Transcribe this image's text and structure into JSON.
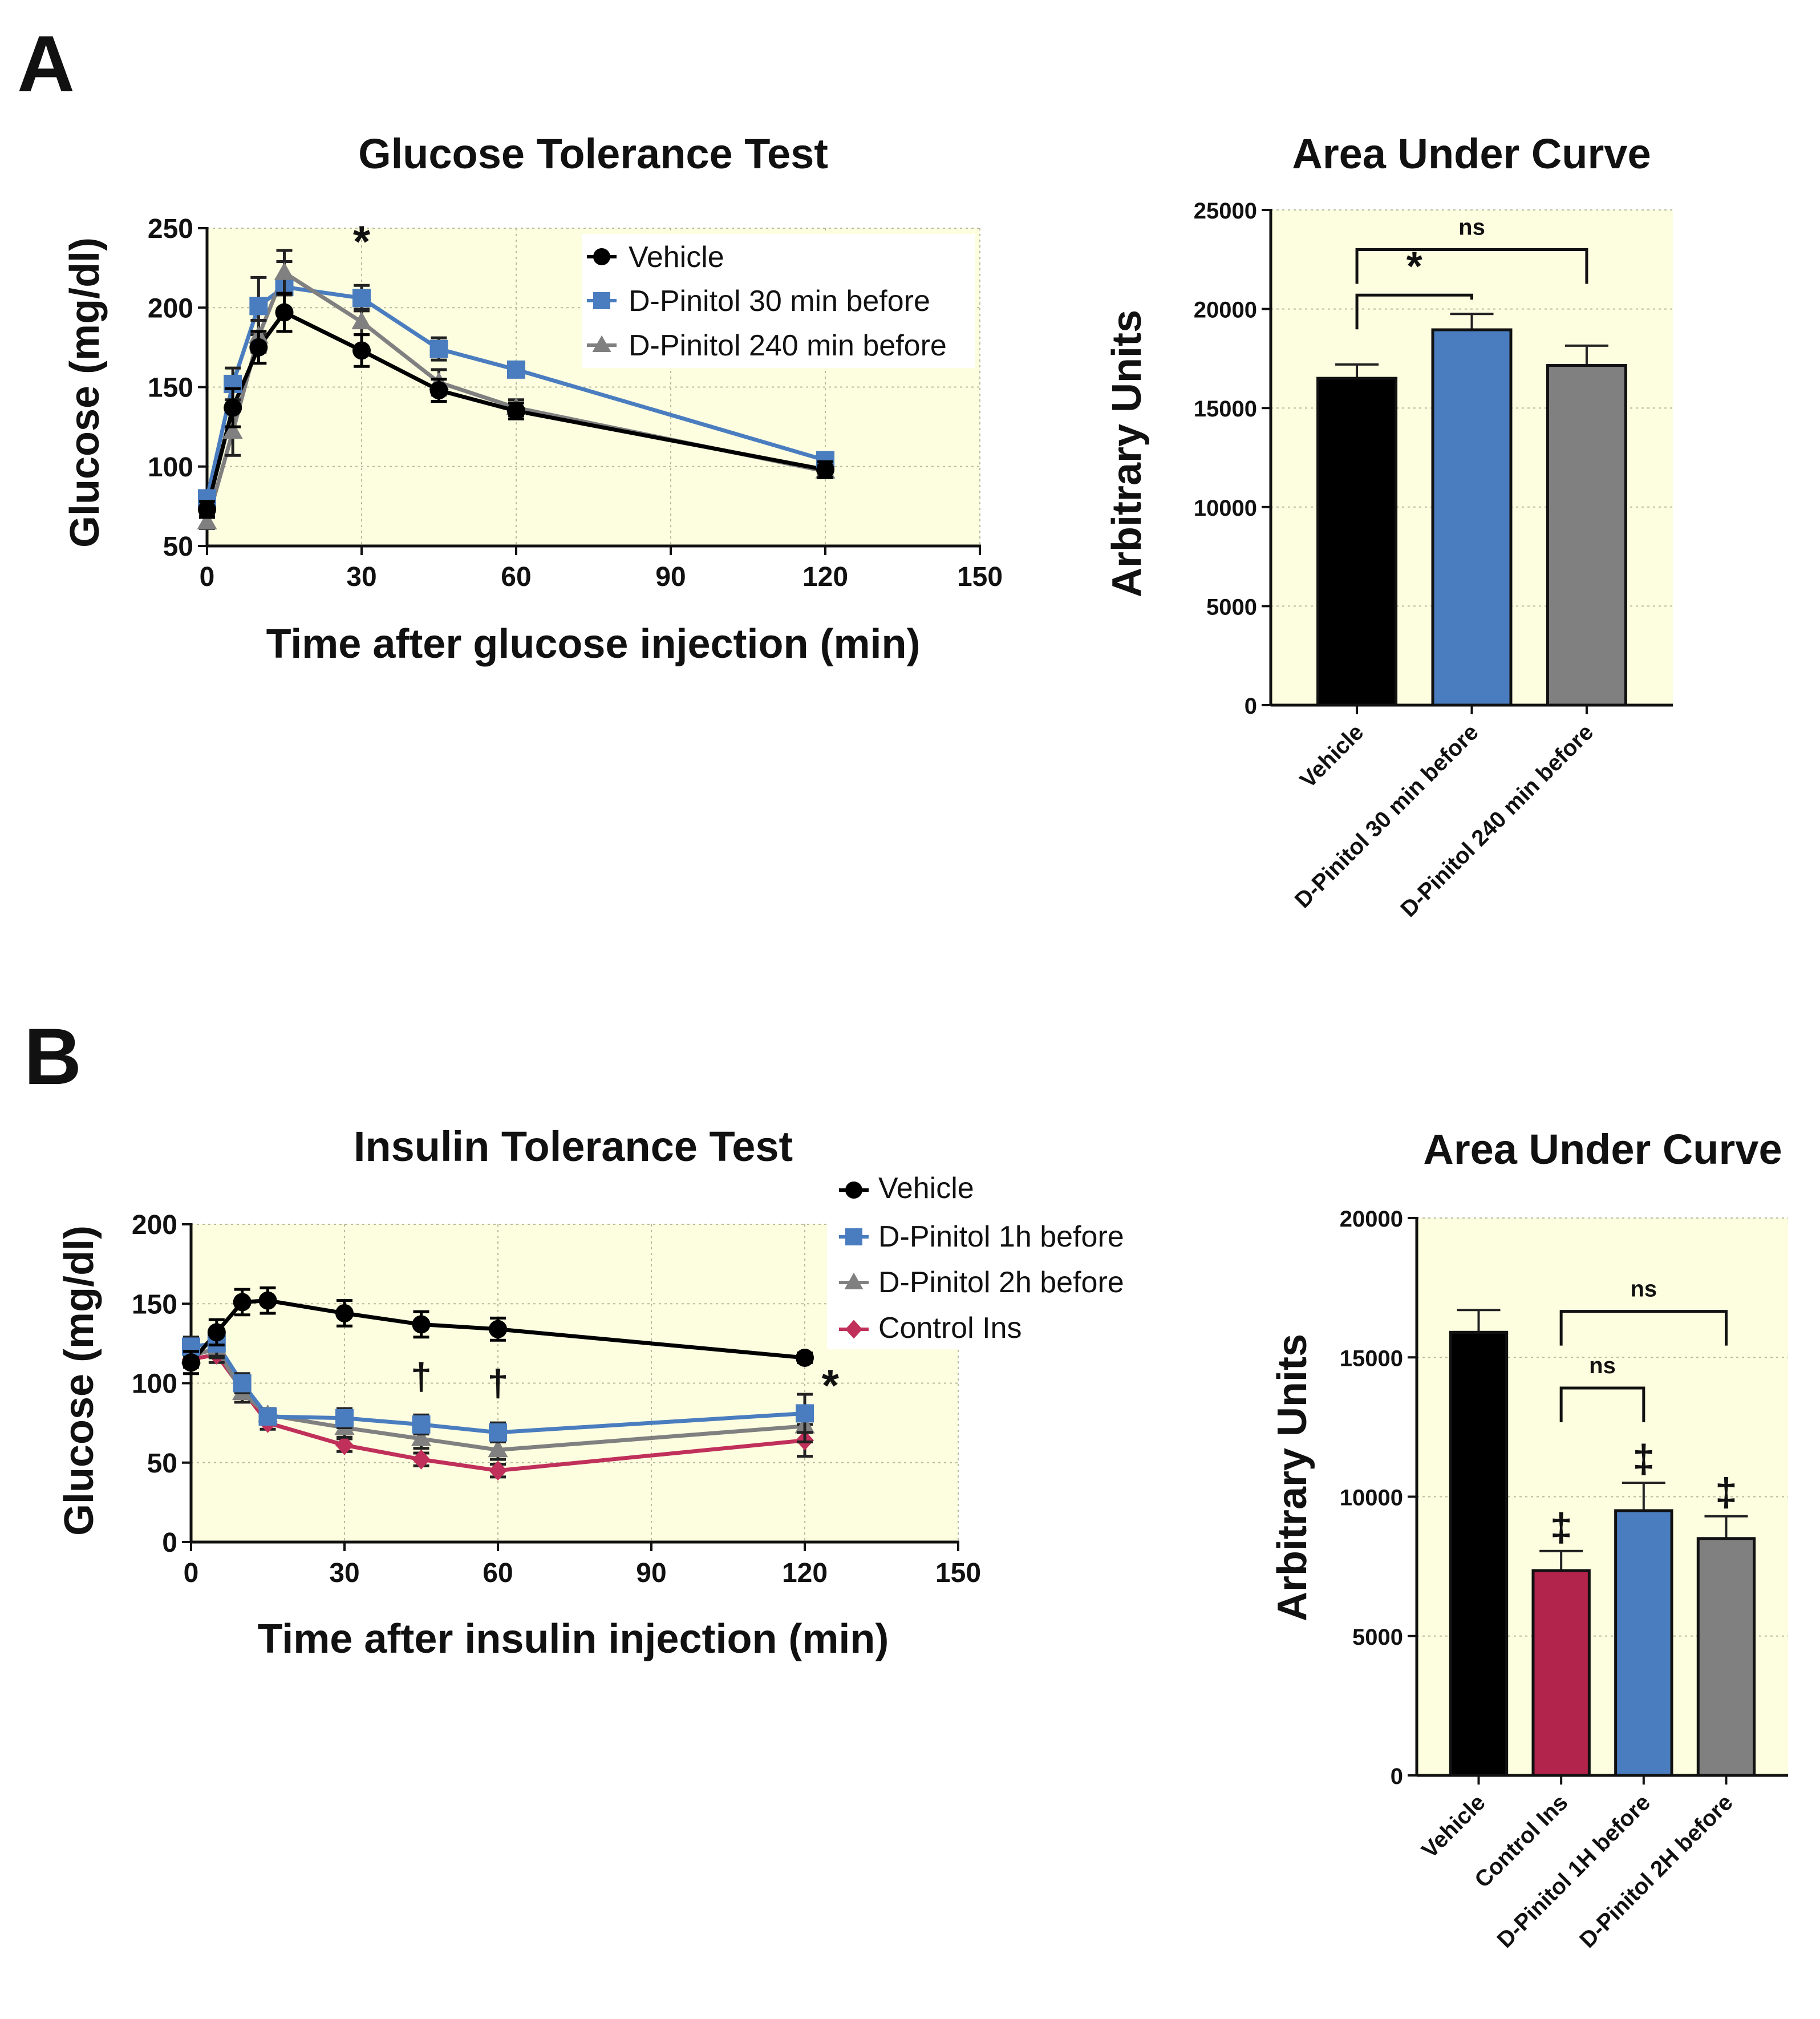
{
  "panels": [
    {
      "label": "A"
    },
    {
      "label": "B"
    }
  ],
  "chart_data": [
    {
      "id": "gtt",
      "type": "line",
      "title": "Glucose Tolerance Test",
      "xlabel": "Time after glucose injection (min)",
      "ylabel": "Glucose (mg/dl)",
      "xlim": [
        0,
        150
      ],
      "ylim": [
        50,
        250
      ],
      "xticks": [
        0,
        30,
        60,
        90,
        120,
        150
      ],
      "yticks": [
        50,
        100,
        150,
        200,
        250
      ],
      "legend_position": "top-right",
      "background": "#fdfde0",
      "x": [
        0,
        5,
        10,
        15,
        30,
        45,
        60,
        120
      ],
      "series": [
        {
          "name": "Vehicle",
          "color": "#000000",
          "marker": "circle",
          "values": [
            73,
            137,
            175,
            197,
            173,
            148,
            135,
            98
          ],
          "errors": [
            5,
            12,
            10,
            12,
            10,
            7,
            5,
            5
          ]
        },
        {
          "name": "D-Pinitol 30 min before",
          "color": "#4a7dbf",
          "marker": "square",
          "values": [
            80,
            152,
            201,
            213,
            206,
            174,
            161,
            104
          ],
          "errors": [
            4,
            10,
            18,
            16,
            8,
            7,
            4,
            4
          ]
        },
        {
          "name": "D-Pinitol 240 min before",
          "color": "#808080",
          "marker": "triangle",
          "values": [
            65,
            122,
            182,
            222,
            191,
            153,
            137,
            97
          ],
          "errors": [
            4,
            15,
            10,
            14,
            8,
            8,
            5,
            4
          ]
        }
      ],
      "annotations": [
        {
          "text": "*",
          "x": 30,
          "y": 232
        }
      ]
    },
    {
      "id": "gtt_auc",
      "type": "bar",
      "title": "Area Under Curve",
      "ylabel": "Arbitrary Units",
      "ylim": [
        0,
        25000
      ],
      "yticks": [
        0,
        5000,
        10000,
        15000,
        20000,
        25000
      ],
      "background": "#fdfde0",
      "categories": [
        "Vehicle",
        "D-Pinitol 30 min before",
        "D-Pinitol 240 min before"
      ],
      "values": [
        16500,
        18950,
        17150
      ],
      "errors": [
        700,
        800,
        1000
      ],
      "colors": [
        "#000000",
        "#4a7dbf",
        "#808080"
      ],
      "brackets": [
        {
          "from": 0,
          "to": 1,
          "text": "*",
          "y": 20700
        },
        {
          "from": 0,
          "to": 2,
          "text": "ns",
          "y": 23000
        }
      ]
    },
    {
      "id": "itt",
      "type": "line",
      "title": "Insulin Tolerance Test",
      "xlabel": "Time after insulin injection (min)",
      "ylabel": "Glucose (mg/dl)",
      "xlim": [
        0,
        150
      ],
      "ylim": [
        0,
        200
      ],
      "xticks": [
        0,
        30,
        60,
        90,
        120,
        150
      ],
      "yticks": [
        0,
        50,
        100,
        150,
        200
      ],
      "legend_position": "outside-top-right",
      "background": "#fdfde0",
      "x": [
        0,
        5,
        10,
        15,
        30,
        45,
        60,
        120
      ],
      "series": [
        {
          "name": "Vehicle",
          "color": "#000000",
          "marker": "circle",
          "values": [
            113,
            132,
            151,
            152,
            144,
            137,
            134,
            116
          ],
          "errors": [
            7,
            8,
            8,
            8,
            8,
            8,
            7,
            3
          ]
        },
        {
          "name": "D-Pinitol 1h before",
          "color": "#4a7dbf",
          "marker": "square",
          "values": [
            123,
            125,
            100,
            79,
            78,
            74,
            69,
            81
          ],
          "errors": [
            6,
            8,
            6,
            4,
            6,
            6,
            6,
            12
          ]
        },
        {
          "name": "D-Pinitol 2h before",
          "color": "#808080",
          "marker": "triangle",
          "values": [
            117,
            122,
            94,
            80,
            72,
            65,
            58,
            73
          ],
          "errors": [
            6,
            6,
            6,
            4,
            6,
            6,
            6,
            10
          ]
        },
        {
          "name": "Control Ins",
          "color": "#c0305a",
          "marker": "diamond",
          "values": [
            115,
            118,
            96,
            75,
            61,
            52,
            45,
            64
          ],
          "errors": [
            5,
            5,
            5,
            4,
            4,
            4,
            4,
            10
          ]
        }
      ],
      "annotations": [
        {
          "text": "†",
          "x": 45,
          "y": 96
        },
        {
          "text": "†",
          "x": 60,
          "y": 92
        },
        {
          "text": "*",
          "x": 125,
          "y": 89
        }
      ]
    },
    {
      "id": "itt_auc",
      "type": "bar",
      "title": "Area Under Curve",
      "ylabel": "Arbitrary Units",
      "ylim": [
        0,
        20000
      ],
      "yticks": [
        0,
        5000,
        10000,
        15000,
        20000
      ],
      "background": "#fdfde0",
      "categories": [
        "Vehicle",
        "Control Ins",
        "D-Pinitol 1H before",
        "D-Pinitol 2H before"
      ],
      "values": [
        15900,
        7350,
        9500,
        8500
      ],
      "errors": [
        800,
        700,
        1000,
        800
      ],
      "colors": [
        "#000000",
        "#b3244c",
        "#4a7dbf",
        "#808080"
      ],
      "markers": [
        "",
        "‡",
        "‡",
        "‡"
      ],
      "brackets": [
        {
          "from": 1,
          "to": 2,
          "text": "ns",
          "y": 13900
        },
        {
          "from": 1,
          "to": 3,
          "text": "ns",
          "y": 16650
        }
      ]
    }
  ]
}
